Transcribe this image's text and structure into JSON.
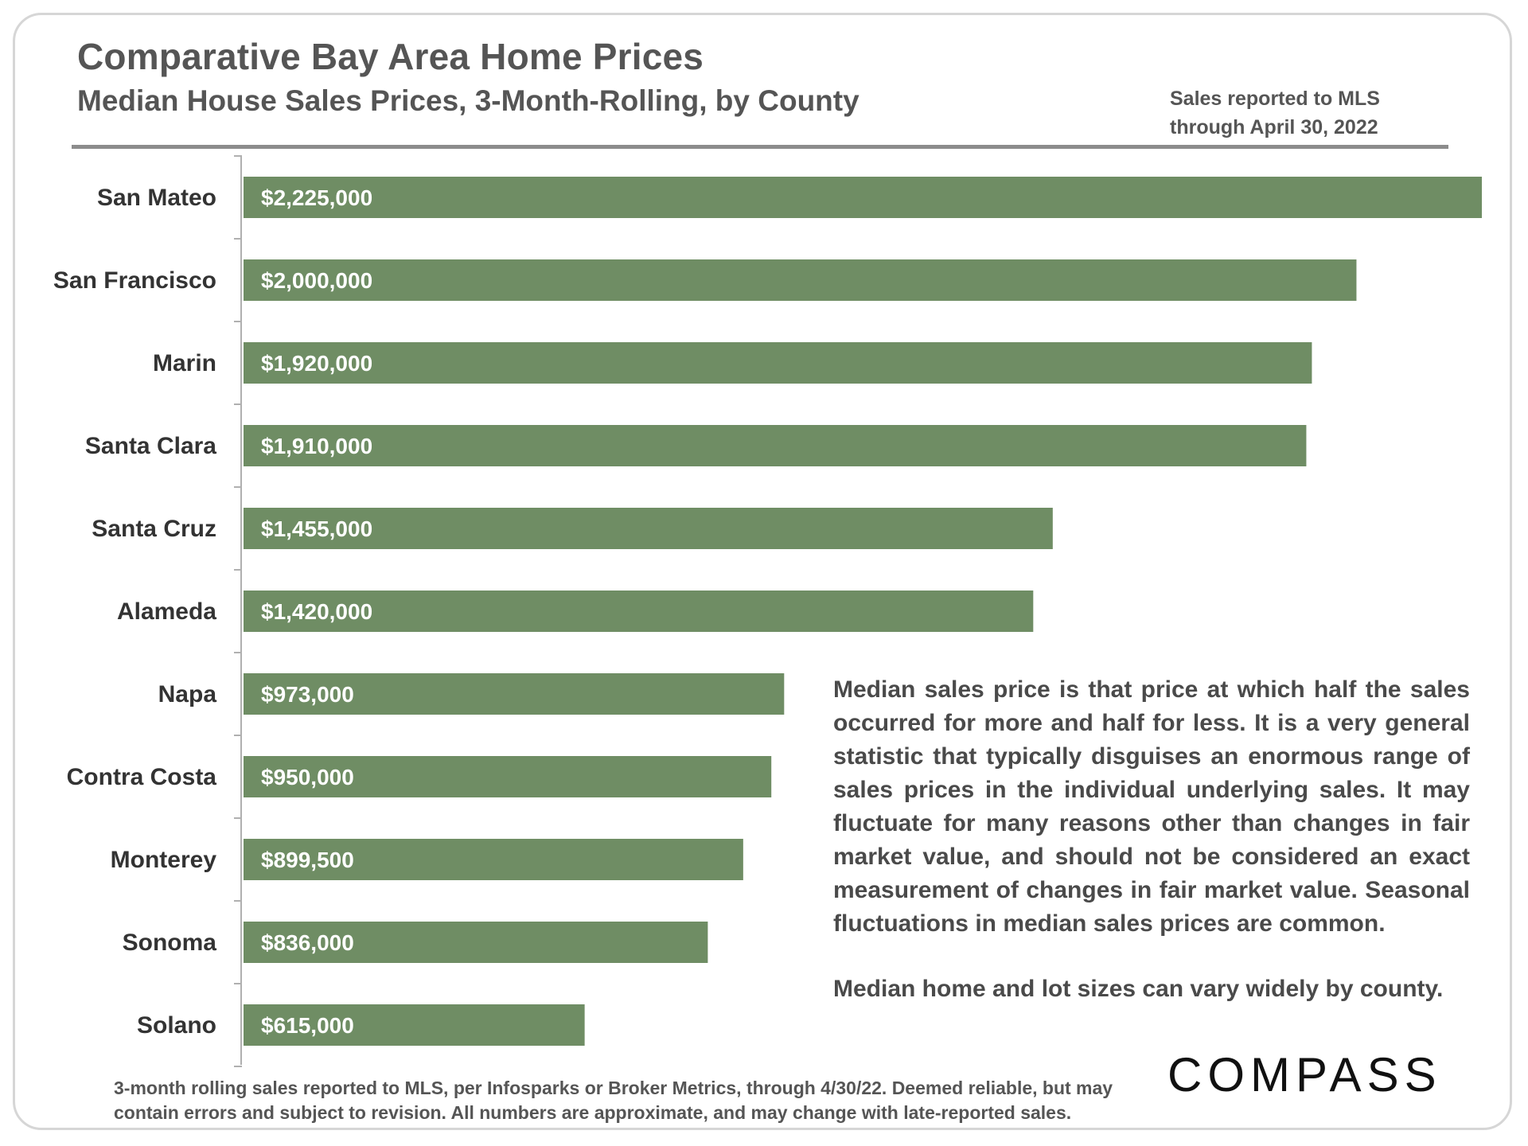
{
  "header": {
    "title": "Comparative Bay Area Home Prices",
    "subtitle": "Median House Sales Prices, 3-Month-Rolling, by County",
    "note_line1": "Sales reported to MLS",
    "note_line2": "through April 30, 2022"
  },
  "chart_data": {
    "type": "bar",
    "orientation": "horizontal",
    "title": "Comparative Bay Area Home Prices",
    "subtitle": "Median House Sales Prices, 3-Month-Rolling, by County",
    "xlabel": "",
    "ylabel": "",
    "xlim": [
      0,
      2225000
    ],
    "grid": false,
    "bar_color": "#6f8d64",
    "categories": [
      "San Mateo",
      "San Francisco",
      "Marin",
      "Santa Clara",
      "Santa Cruz",
      "Alameda",
      "Napa",
      "Contra Costa",
      "Monterey",
      "Sonoma",
      "Solano"
    ],
    "values": [
      2225000,
      2000000,
      1920000,
      1910000,
      1455000,
      1420000,
      973000,
      950000,
      899500,
      836000,
      615000
    ],
    "value_labels": [
      "$2,225,000",
      "$2,000,000",
      "$1,920,000",
      "$1,910,000",
      "$1,455,000",
      "$1,420,000",
      "$973,000",
      "$950,000",
      "$899,500",
      "$836,000",
      "$615,000"
    ]
  },
  "annotation": {
    "paragraph1": "Median sales price is that price at which half the sales occurred for more and half for less. It is a very general statistic that typically disguises an enormous range of sales prices in the individual underlying sales. It may fluctuate for many reasons other than changes in fair market value, and should not be considered an exact measurement of changes in fair market value. Seasonal fluctuations in median sales prices are common.",
    "paragraph2": "Median home and lot sizes can vary widely by county."
  },
  "footer": {
    "footnote": "3-month rolling sales reported to MLS, per Infosparks or Broker Metrics, through 4/30/22. Deemed reliable, but may contain errors and subject to revision. All numbers are approximate, and may change with late-reported sales.",
    "logo": "COMPASS"
  }
}
